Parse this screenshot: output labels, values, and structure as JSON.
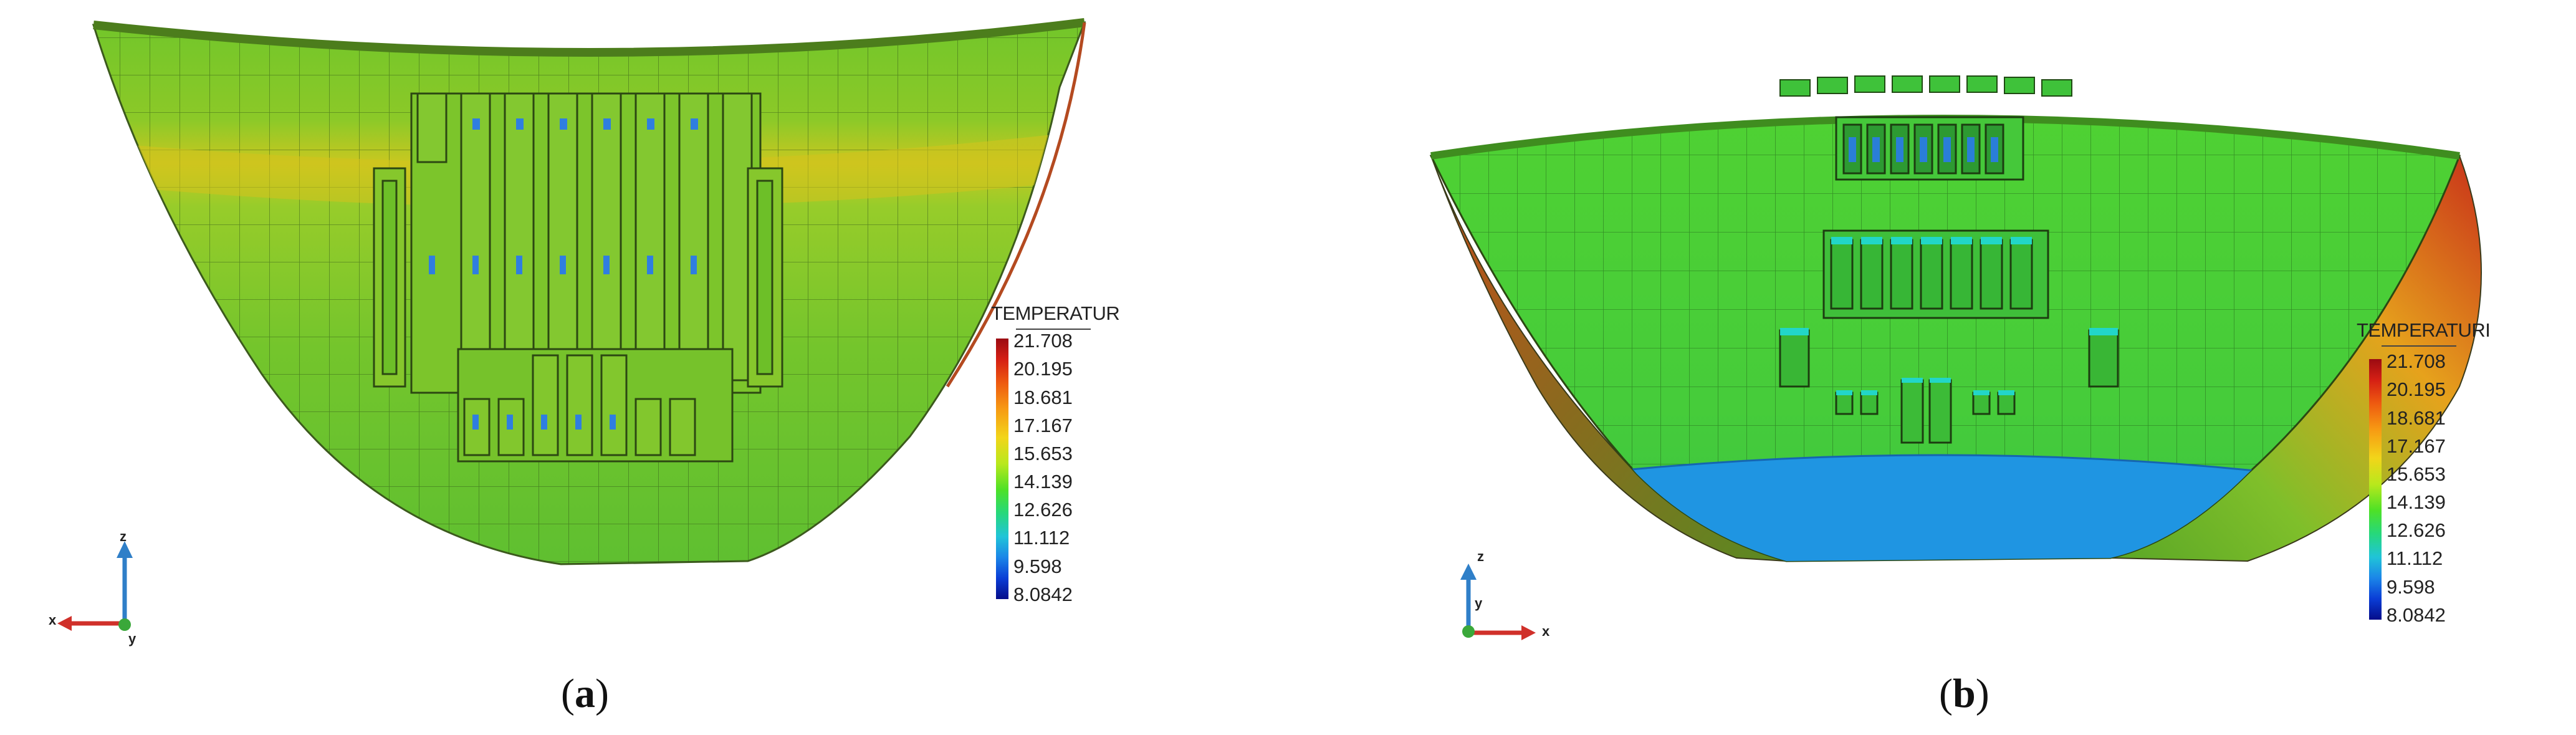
{
  "colors": {
    "surface_green": "#6cc22c",
    "surface_light_green": "#8fd23a",
    "warm_band": "#d7c521",
    "edge_red": "#c0361a",
    "cold_blue": "#1e8fe0",
    "axis_z": "#2f7fc8",
    "axis_x": "#d0302a",
    "axis_y": "#3aa83a"
  },
  "legend": {
    "title_a": "TEMPERATUR",
    "title_b": "TEMPERATURI",
    "values": [
      "21.708",
      "20.195",
      "18.681",
      "17.167",
      "15.653",
      "14.139",
      "12.626",
      "11.112",
      "9.598",
      "8.0842"
    ]
  },
  "axes": {
    "a": {
      "z": "z",
      "x": "x",
      "y": "y"
    },
    "b": {
      "z": "z",
      "x": "x",
      "y": "y"
    }
  },
  "panels": {
    "a": {
      "caption_open": "(",
      "caption_letter": "a",
      "caption_close": ")"
    },
    "b": {
      "caption_open": "(",
      "caption_letter": "b",
      "caption_close": ")"
    }
  }
}
